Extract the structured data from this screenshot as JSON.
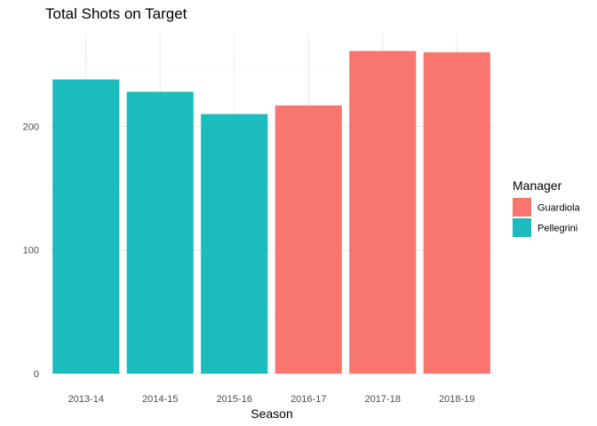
{
  "chart_data": {
    "type": "bar",
    "title": "Total Shots on Target",
    "xlabel": "Season",
    "ylabel": "",
    "categories": [
      "2013-14",
      "2014-15",
      "2015-16",
      "2016-17",
      "2017-18",
      "2018-19"
    ],
    "values": [
      238,
      228,
      210,
      217,
      261,
      260
    ],
    "group_by_category": [
      "Pellegrini",
      "Pellegrini",
      "Pellegrini",
      "Guardiola",
      "Guardiola",
      "Guardiola"
    ],
    "ylim": [
      0,
      275
    ],
    "yticks": [
      0,
      100,
      200
    ],
    "grid": true,
    "legend": {
      "title": "Manager",
      "placement": "right",
      "entries": [
        {
          "name": "Guardiola",
          "color": "#F8766D"
        },
        {
          "name": "Pellegrini",
          "color": "#1CBBBD"
        }
      ]
    }
  }
}
